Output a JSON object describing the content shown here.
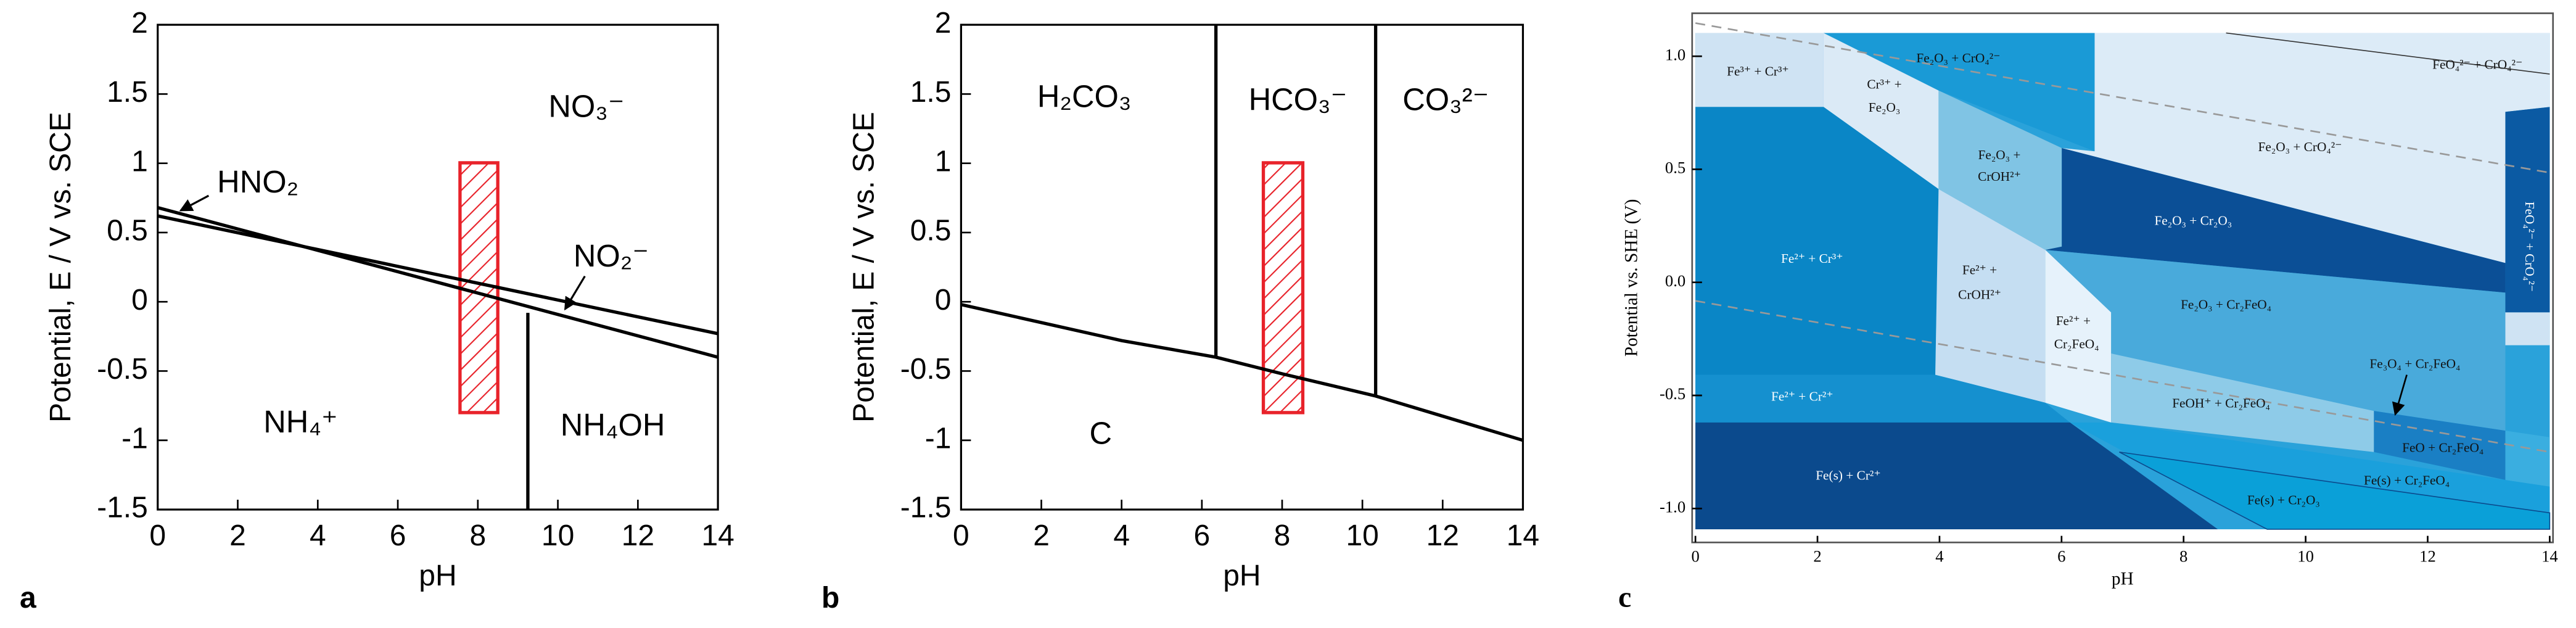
{
  "chart_data": [
    {
      "type": "line",
      "panel_label": "a",
      "xlabel": "pH",
      "ylabel": "Potential, E / V vs. SCE",
      "xlim": [
        0,
        14
      ],
      "ylim": [
        -1.5,
        2
      ],
      "xticks": [
        0,
        2,
        4,
        6,
        8,
        10,
        12,
        14
      ],
      "yticks": [
        -1.5,
        -1,
        -0.5,
        0,
        0.5,
        1,
        1.5,
        2
      ],
      "series": [
        {
          "color": "#000000",
          "x": [
            0,
            14
          ],
          "values": [
            0.68,
            -0.4
          ]
        },
        {
          "color": "#000000",
          "x": [
            0,
            14
          ],
          "values": [
            0.62,
            -0.23
          ]
        },
        {
          "color": "#000000",
          "x": [
            9.25,
            9.25
          ],
          "values": [
            -0.08,
            -1.5
          ]
        }
      ],
      "annotations": [
        "NO₃⁻",
        "HNO₂",
        "NO₂⁻",
        "NH₄⁺",
        "NH₄OH"
      ]
    },
    {
      "type": "line",
      "panel_label": "b",
      "xlabel": "pH",
      "ylabel": "Potential, E / V vs. SCE",
      "xlim": [
        0,
        14
      ],
      "ylim": [
        -1.5,
        2
      ],
      "xticks": [
        0,
        2,
        4,
        6,
        8,
        10,
        12,
        14
      ],
      "yticks": [
        -1.5,
        -1,
        -0.5,
        0,
        0.5,
        1,
        1.5,
        2
      ],
      "series": [
        {
          "color": "#000000",
          "x": [
            0,
            4,
            6.35,
            8,
            10.33,
            14
          ],
          "values": [
            -0.02,
            -0.28,
            -0.4,
            -0.52,
            -0.68,
            -1.0
          ]
        },
        {
          "color": "#000000",
          "x": [
            6.35,
            6.35
          ],
          "values": [
            -0.4,
            2
          ]
        },
        {
          "color": "#000000",
          "x": [
            10.33,
            10.33
          ],
          "values": [
            -0.68,
            2
          ]
        }
      ],
      "annotations": [
        "H₂CO₃",
        "HCO₃⁻",
        "CO₃²⁻",
        "C"
      ]
    },
    {
      "type": "area",
      "panel_label": "c",
      "xlabel": "pH",
      "ylabel": "Potential vs. SHE (V)",
      "xlim": [
        0,
        14
      ],
      "ylim": [
        -1.15,
        1.19
      ],
      "xticks": [
        0,
        2,
        4,
        6,
        8,
        10,
        12,
        14
      ],
      "yticks": [
        {
          "value": -1,
          "label": "-1.0"
        },
        -0.5,
        {
          "value": 0,
          "label": "0.0"
        },
        0.5,
        {
          "value": 1,
          "label": "1.0"
        }
      ],
      "series": [],
      "annotations": [
        "Fe³⁺ + Cr³⁺",
        "Cr³⁺ +",
        "Fe₂O₃",
        "Fe₂O₃ + CrO₄²⁻",
        "FeO₄²⁻ + CrO₄²⁻",
        "Fe₂O₃ +",
        "CrOH²⁺",
        "Fe₂O₃ + CrO₄²⁻",
        "Fe²⁺ + Cr³⁺",
        "Fe₂O₃ + Cr₂O₃",
        "Fe²⁺ +",
        "CrOH²⁺",
        "Fe²⁺ +",
        "Cr₂FeO₄",
        "Fe₂O₃ + Cr₂FeO₄",
        "Fe₃O₄ + Cr₂FeO₄",
        "FeO₄²⁻ + CrO₄²⁻",
        "Fe²⁺ + Cr²⁺",
        "FeOH⁺ + Cr₂FeO₄",
        "FeO + Cr₂FeO₄",
        "Fe(s) + Cr²⁺",
        "Fe(s) + Cr₂FeO₄",
        "Fe(s) + Cr₂O₃"
      ]
    }
  ]
}
